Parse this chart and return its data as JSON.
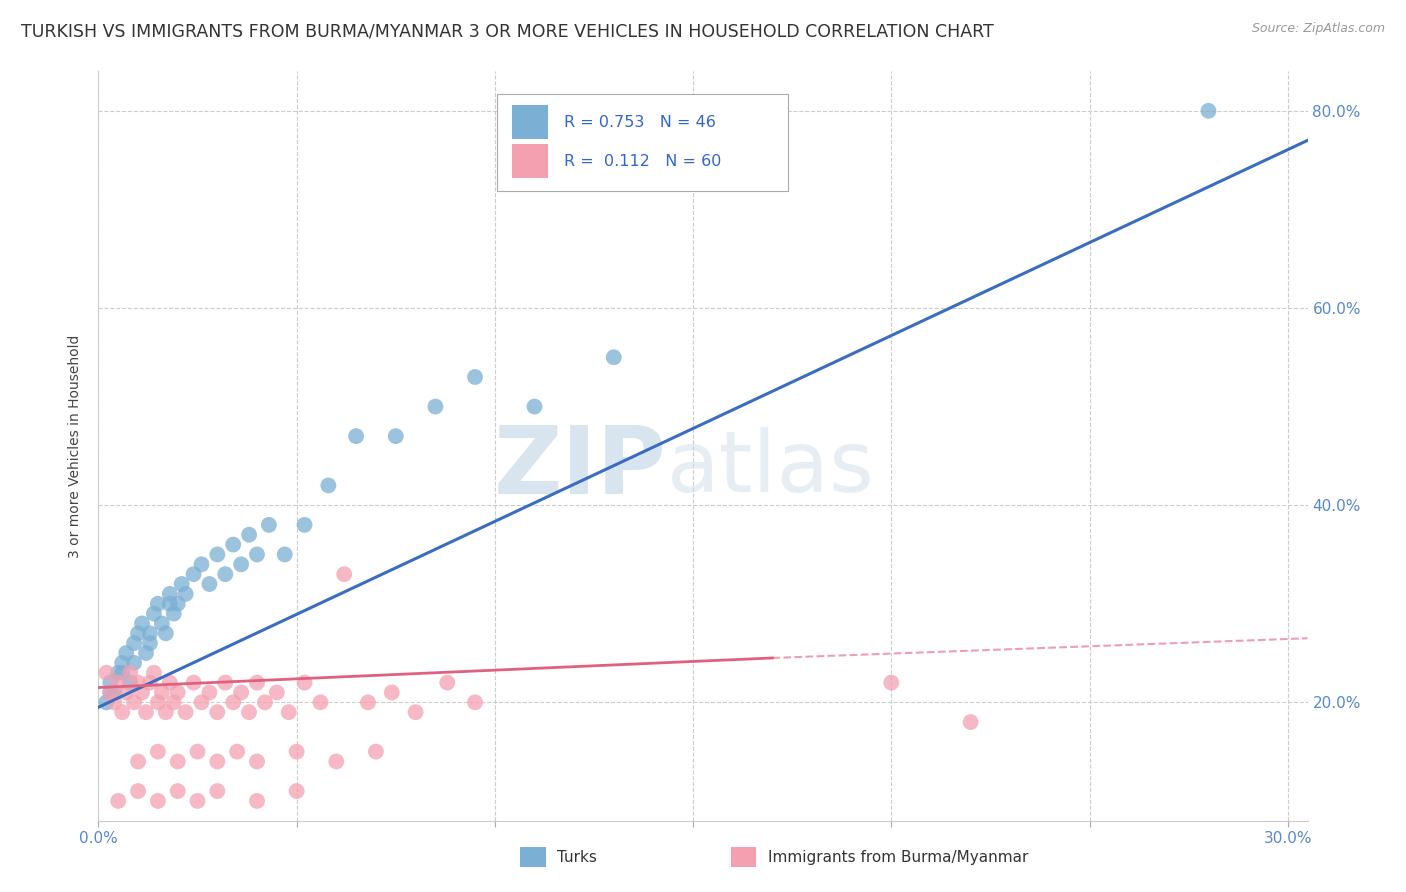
{
  "title": "TURKISH VS IMMIGRANTS FROM BURMA/MYANMAR 3 OR MORE VEHICLES IN HOUSEHOLD CORRELATION CHART",
  "source": "Source: ZipAtlas.com",
  "ylabel": "3 or more Vehicles in Household",
  "xlim": [
    0.0,
    0.305
  ],
  "ylim": [
    0.08,
    0.84
  ],
  "yticks": [
    0.2,
    0.4,
    0.6,
    0.8
  ],
  "yticklabels": [
    "20.0%",
    "40.0%",
    "60.0%",
    "80.0%"
  ],
  "title_fontsize": 12.5,
  "label_fontsize": 10,
  "tick_fontsize": 11,
  "watermark": "ZIPatlas",
  "watermark_color": "#d0dde8",
  "background_color": "#ffffff",
  "grid_color": "#cccccc",
  "blue_color": "#7bafd4",
  "pink_color": "#f4a0b0",
  "blue_line_color": "#3a6dbf",
  "pink_line_color": "#e06080",
  "legend_r1": "R = 0.753",
  "legend_n1": "N = 46",
  "legend_r2": "R =  0.112",
  "legend_n2": "N = 60",
  "turks_x": [
    0.002,
    0.003,
    0.004,
    0.005,
    0.006,
    0.007,
    0.008,
    0.009,
    0.01,
    0.011,
    0.012,
    0.013,
    0.014,
    0.015,
    0.016,
    0.017,
    0.018,
    0.019,
    0.02,
    0.021,
    0.022,
    0.024,
    0.026,
    0.028,
    0.03,
    0.032,
    0.034,
    0.036,
    0.038,
    0.04,
    0.043,
    0.047,
    0.052,
    0.058,
    0.065,
    0.075,
    0.085,
    0.095,
    0.11,
    0.13,
    0.003,
    0.006,
    0.009,
    0.013,
    0.018,
    0.28
  ],
  "turks_y": [
    0.2,
    0.22,
    0.21,
    0.23,
    0.24,
    0.25,
    0.22,
    0.26,
    0.27,
    0.28,
    0.25,
    0.27,
    0.29,
    0.3,
    0.28,
    0.27,
    0.31,
    0.29,
    0.3,
    0.32,
    0.31,
    0.33,
    0.34,
    0.32,
    0.35,
    0.33,
    0.36,
    0.34,
    0.37,
    0.35,
    0.38,
    0.35,
    0.38,
    0.42,
    0.47,
    0.47,
    0.5,
    0.53,
    0.5,
    0.55,
    0.21,
    0.23,
    0.24,
    0.26,
    0.3,
    0.8
  ],
  "burma_x": [
    0.002,
    0.003,
    0.004,
    0.005,
    0.006,
    0.007,
    0.008,
    0.009,
    0.01,
    0.011,
    0.012,
    0.013,
    0.014,
    0.015,
    0.016,
    0.017,
    0.018,
    0.019,
    0.02,
    0.022,
    0.024,
    0.026,
    0.028,
    0.03,
    0.032,
    0.034,
    0.036,
    0.038,
    0.04,
    0.042,
    0.045,
    0.048,
    0.052,
    0.056,
    0.062,
    0.068,
    0.074,
    0.08,
    0.088,
    0.095,
    0.01,
    0.015,
    0.02,
    0.025,
    0.03,
    0.035,
    0.04,
    0.05,
    0.06,
    0.07,
    0.005,
    0.01,
    0.015,
    0.02,
    0.025,
    0.03,
    0.04,
    0.05,
    0.2,
    0.22
  ],
  "burma_y": [
    0.23,
    0.21,
    0.2,
    0.22,
    0.19,
    0.21,
    0.23,
    0.2,
    0.22,
    0.21,
    0.19,
    0.22,
    0.23,
    0.2,
    0.21,
    0.19,
    0.22,
    0.2,
    0.21,
    0.19,
    0.22,
    0.2,
    0.21,
    0.19,
    0.22,
    0.2,
    0.21,
    0.19,
    0.22,
    0.2,
    0.21,
    0.19,
    0.22,
    0.2,
    0.33,
    0.2,
    0.21,
    0.19,
    0.22,
    0.2,
    0.14,
    0.15,
    0.14,
    0.15,
    0.14,
    0.15,
    0.14,
    0.15,
    0.14,
    0.15,
    0.1,
    0.11,
    0.1,
    0.11,
    0.1,
    0.11,
    0.1,
    0.11,
    0.22,
    0.18
  ],
  "blue_trendline": [
    [
      0.0,
      0.305
    ],
    [
      0.195,
      0.77
    ]
  ],
  "pink_trendline_solid": [
    [
      0.0,
      0.17
    ],
    [
      0.215,
      0.245
    ]
  ],
  "pink_trendline_dashed": [
    [
      0.17,
      0.305
    ],
    [
      0.245,
      0.265
    ]
  ]
}
